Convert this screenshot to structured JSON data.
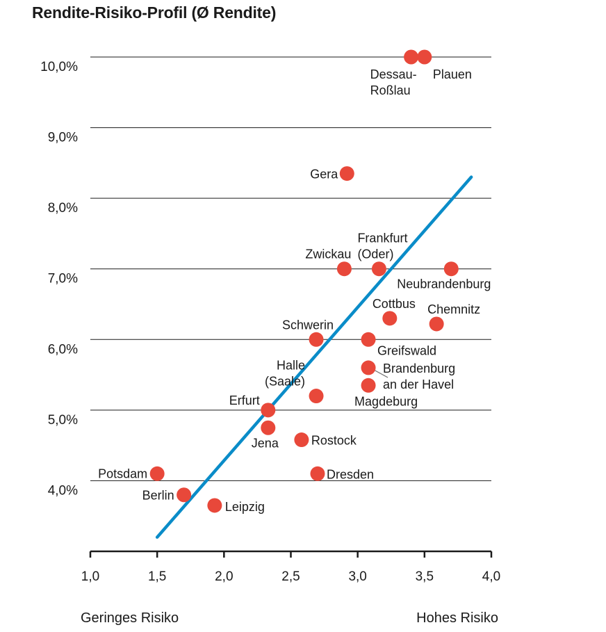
{
  "chart_data": {
    "type": "scatter",
    "title": "Rendite-Risiko-Profil (Ø Rendite)",
    "xlabel_left": "Geringes Risiko",
    "xlabel_right": "Hohes Risiko",
    "xlim": [
      1.0,
      4.0
    ],
    "ylim": [
      3.0,
      10.0
    ],
    "x_ticks": [
      "1,0",
      "1,5",
      "2,0",
      "2,5",
      "3,0",
      "3,5",
      "4,0"
    ],
    "y_ticks": [
      "4,0%",
      "5,0%",
      "6,0%",
      "7,0%",
      "8,0%",
      "9,0%",
      "10,0%"
    ],
    "grid": "horizontal",
    "point_color": "#e8483a",
    "trend_color": "#0a8cc8",
    "trendline": {
      "x": [
        1.5,
        3.85
      ],
      "y": [
        3.2,
        8.3
      ]
    },
    "points": [
      {
        "label": "Dessau-\nRoßlau",
        "x": 3.4,
        "y": 10.0
      },
      {
        "label": "Plauen",
        "x": 3.5,
        "y": 10.0
      },
      {
        "label": "Gera",
        "x": 2.92,
        "y": 8.35
      },
      {
        "label": "Zwickau",
        "x": 2.9,
        "y": 7.0
      },
      {
        "label": "Frankfurt\n(Oder)",
        "x": 3.16,
        "y": 7.0
      },
      {
        "label": "Neubrandenburg",
        "x": 3.7,
        "y": 7.0
      },
      {
        "label": "Cottbus",
        "x": 3.24,
        "y": 6.3
      },
      {
        "label": "Chemnitz",
        "x": 3.59,
        "y": 6.22
      },
      {
        "label": "Schwerin",
        "x": 2.69,
        "y": 6.0
      },
      {
        "label": "Greifswald",
        "x": 3.08,
        "y": 6.0
      },
      {
        "label": "Brandenburg\nan der Havel",
        "x": 3.08,
        "y": 5.6
      },
      {
        "label": "Halle\n(Saale)",
        "x": 2.69,
        "y": 5.2
      },
      {
        "label": "Magdeburg",
        "x": 3.08,
        "y": 5.35
      },
      {
        "label": "Erfurt",
        "x": 2.33,
        "y": 5.0
      },
      {
        "label": "Jena",
        "x": 2.33,
        "y": 4.75
      },
      {
        "label": "Rostock",
        "x": 2.58,
        "y": 4.58
      },
      {
        "label": "Potsdam",
        "x": 1.5,
        "y": 4.1
      },
      {
        "label": "Dresden",
        "x": 2.7,
        "y": 4.1
      },
      {
        "label": "Berlin",
        "x": 1.7,
        "y": 3.8
      },
      {
        "label": "Leipzig",
        "x": 1.93,
        "y": 3.65
      }
    ]
  }
}
